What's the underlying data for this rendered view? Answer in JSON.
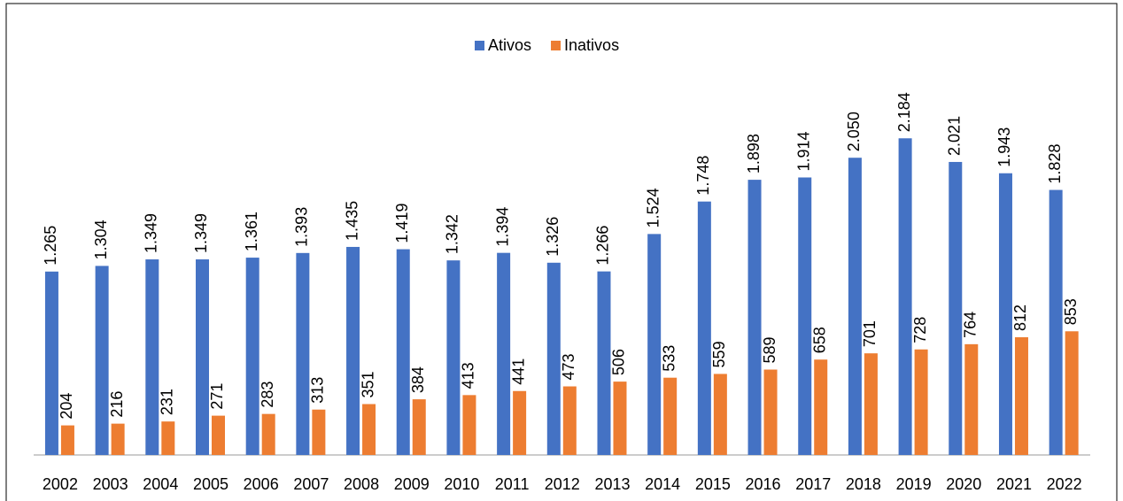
{
  "chart_data": {
    "type": "bar",
    "categories": [
      "2002",
      "2003",
      "2004",
      "2005",
      "2006",
      "2007",
      "2008",
      "2009",
      "2010",
      "2011",
      "2012",
      "2013",
      "2014",
      "2015",
      "2016",
      "2017",
      "2018",
      "2019",
      "2020",
      "2021",
      "2022"
    ],
    "series": [
      {
        "name": "Ativos",
        "color": "#4472c4",
        "values": [
          1265,
          1304,
          1349,
          1349,
          1361,
          1393,
          1435,
          1419,
          1342,
          1394,
          1326,
          1266,
          1524,
          1748,
          1898,
          1914,
          2050,
          2184,
          2021,
          1943,
          1828
        ],
        "value_labels": [
          "1.265",
          "1.304",
          "1.349",
          "1.349",
          "1.361",
          "1.393",
          "1.435",
          "1.419",
          "1.342",
          "1.394",
          "1.326",
          "1.266",
          "1.524",
          "1.748",
          "1.898",
          "1.914",
          "2.050",
          "2.184",
          "2.021",
          "1.943",
          "1.828"
        ]
      },
      {
        "name": "Inativos",
        "color": "#ed7d31",
        "values": [
          204,
          216,
          231,
          271,
          283,
          313,
          351,
          384,
          413,
          441,
          473,
          506,
          533,
          559,
          589,
          658,
          701,
          728,
          764,
          812,
          853
        ]
      }
    ],
    "legend": "top"
  }
}
